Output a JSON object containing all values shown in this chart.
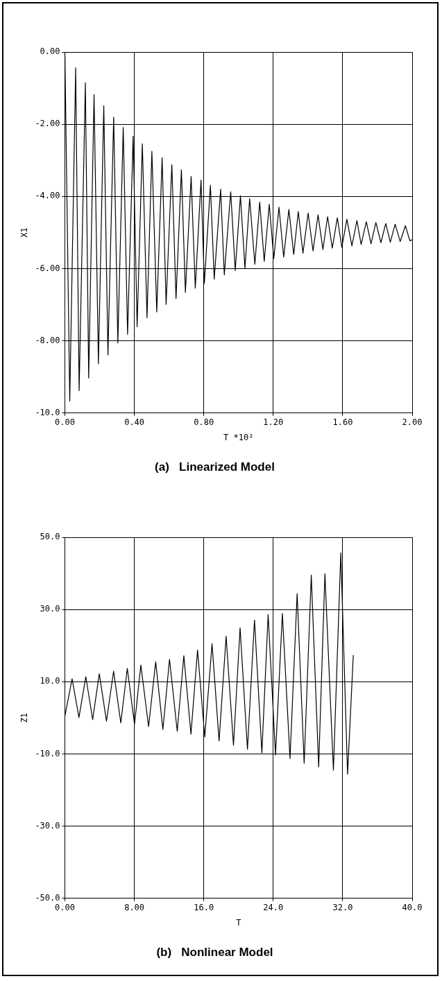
{
  "chart_data": [
    {
      "type": "line",
      "title": "(a)   Linearized Model",
      "xlabel": "T *10²",
      "ylabel": "X1",
      "grid": true,
      "legend": false,
      "xlim": [
        0,
        2
      ],
      "xticks": [
        {
          "value": 0,
          "label": "0.00"
        },
        {
          "value": 0.4,
          "label": "0.40"
        },
        {
          "value": 0.8,
          "label": "0.80"
        },
        {
          "value": 1.2,
          "label": "1.20"
        },
        {
          "value": 1.6,
          "label": "1.60"
        },
        {
          "value": 2,
          "label": "2.00"
        }
      ],
      "ylim": [
        -10,
        0
      ],
      "yticks": [
        {
          "value": -10,
          "label": "-10.0"
        },
        {
          "value": -8,
          "label": "-8.00"
        },
        {
          "value": -6,
          "label": "-6.00"
        },
        {
          "value": -4,
          "label": "-4.00"
        },
        {
          "value": -2,
          "label": "-2.00"
        },
        {
          "value": 0,
          "label": "0.00"
        }
      ],
      "series": [
        {
          "color": "#000000",
          "x": [
            0,
            0.028,
            0.062,
            0.082,
            0.118,
            0.137,
            0.168,
            0.193,
            0.224,
            0.248,
            0.281,
            0.305,
            0.336,
            0.361,
            0.393,
            0.416,
            0.446,
            0.473,
            0.501,
            0.529,
            0.56,
            0.583,
            0.616,
            0.64,
            0.671,
            0.694,
            0.727,
            0.751,
            0.784,
            0.803,
            0.838,
            0.86,
            0.897,
            0.918,
            0.955,
            0.981,
            1.011,
            1.037,
            1.064,
            1.094,
            1.122,
            1.148,
            1.177,
            1.203,
            1.233,
            1.26,
            1.29,
            1.318,
            1.344,
            1.371,
            1.401,
            1.429,
            1.458,
            1.486,
            1.513,
            1.54,
            1.569,
            1.595,
            1.624,
            1.653,
            1.682,
            1.706,
            1.736,
            1.763,
            1.791,
            1.82,
            1.848,
            1.874,
            1.902,
            1.931,
            1.961,
            1.987,
            2
          ],
          "values": [
            0,
            -9.67,
            -0.44,
            -9.38,
            -0.85,
            -9.03,
            -1.18,
            -8.64,
            -1.49,
            -8.39,
            -1.8,
            -8.06,
            -2.09,
            -7.82,
            -2.33,
            -7.61,
            -2.54,
            -7.36,
            -2.75,
            -7.2,
            -2.93,
            -6.99,
            -3.12,
            -6.83,
            -3.26,
            -6.66,
            -3.45,
            -6.54,
            -3.55,
            -6.41,
            -3.69,
            -6.29,
            -3.8,
            -6.17,
            -3.87,
            -6.05,
            -3.98,
            -5.99,
            -4.06,
            -5.88,
            -4.16,
            -5.8,
            -4.22,
            -5.72,
            -4.3,
            -5.68,
            -4.36,
            -5.61,
            -4.42,
            -5.57,
            -4.46,
            -5.51,
            -4.51,
            -5.47,
            -4.56,
            -5.43,
            -4.59,
            -5.41,
            -4.63,
            -5.37,
            -4.67,
            -5.33,
            -4.7,
            -5.31,
            -4.72,
            -5.28,
            -4.75,
            -5.27,
            -4.77,
            -5.25,
            -4.81,
            -5.23,
            -5.2
          ]
        }
      ]
    },
    {
      "type": "line",
      "title": "(b)   Nonlinear Model",
      "xlabel": "T",
      "ylabel": "Z1",
      "grid": true,
      "legend": false,
      "xlim": [
        0,
        40
      ],
      "xticks": [
        {
          "value": 0,
          "label": "0.00"
        },
        {
          "value": 8,
          "label": "8.00"
        },
        {
          "value": 16,
          "label": "16.0"
        },
        {
          "value": 24,
          "label": "24.0"
        },
        {
          "value": 32,
          "label": "32.0"
        },
        {
          "value": 40,
          "label": "40.0"
        }
      ],
      "ylim": [
        -50,
        50
      ],
      "yticks": [
        {
          "value": -50,
          "label": "-50.0"
        },
        {
          "value": -30,
          "label": "-30.0"
        },
        {
          "value": -10,
          "label": "-10.0"
        },
        {
          "value": 10,
          "label": "10.0"
        },
        {
          "value": 30,
          "label": "30.0"
        },
        {
          "value": 50,
          "label": "50.0"
        }
      ],
      "series": [
        {
          "color": "#000000",
          "x": [
            0,
            0.83,
            1.62,
            2.41,
            3.2,
            3.96,
            4.79,
            5.61,
            6.44,
            7.19,
            8.02,
            8.75,
            9.64,
            10.46,
            11.29,
            12.05,
            12.94,
            13.7,
            14.52,
            15.28,
            16.11,
            16.95,
            17.76,
            18.57,
            19.42,
            20.18,
            21.03,
            21.84,
            22.69,
            23.41,
            24.26,
            25.05,
            25.93,
            26.75,
            27.56,
            28.38,
            29.23,
            29.95,
            30.93,
            31.78,
            32.56,
            33.22
          ],
          "values": [
            0.5,
            10.8,
            0.1,
            11.4,
            -0.5,
            12.2,
            -0.9,
            12.9,
            -1.4,
            13.7,
            -1.8,
            14.6,
            -2.4,
            15.5,
            -3.2,
            16.2,
            -3.7,
            17.2,
            -4.5,
            18.8,
            -5.3,
            20.5,
            -6.4,
            22.6,
            -7.6,
            24.9,
            -8.7,
            27.1,
            -9.7,
            28.6,
            -10.3,
            28.9,
            -11.3,
            34.4,
            -12.6,
            39.5,
            -13.6,
            39.9,
            -14.5,
            45.7,
            -15.6,
            17.4
          ]
        }
      ]
    }
  ]
}
